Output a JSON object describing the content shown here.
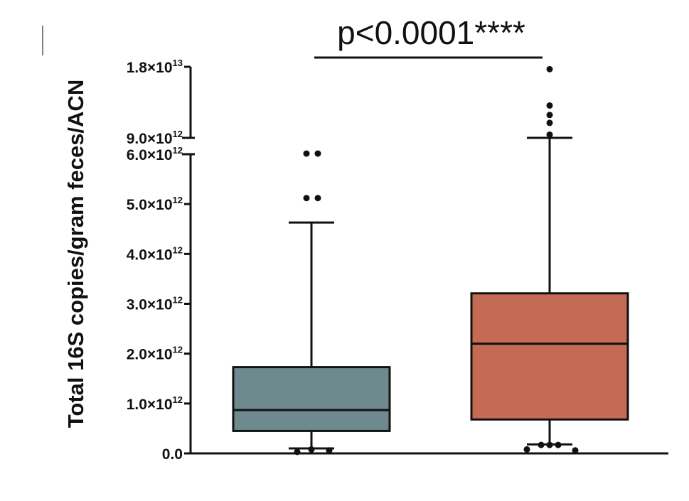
{
  "chart_data": {
    "type": "box",
    "ylabel": "Total 16S copies/gram feces/ACN",
    "y_axis": {
      "broken": true,
      "lower_segment": {
        "range": [
          0,
          6000000000000
        ]
      },
      "upper_segment": {
        "range": [
          9000000000000,
          18000000000000
        ]
      },
      "ticks": [
        {
          "value": 0,
          "label": "0.0"
        },
        {
          "value": 1000000000000,
          "base": "1.0×10",
          "exp": "12"
        },
        {
          "value": 2000000000000,
          "base": "2.0×10",
          "exp": "12"
        },
        {
          "value": 3000000000000,
          "base": "3.0×10",
          "exp": "12"
        },
        {
          "value": 4000000000000,
          "base": "4.0×10",
          "exp": "12"
        },
        {
          "value": 5000000000000,
          "base": "5.0×10",
          "exp": "12"
        },
        {
          "value": 6000000000000,
          "base": "6.0×10",
          "exp": "12"
        },
        {
          "value": 9000000000000,
          "base": "9.0×10",
          "exp": "12"
        },
        {
          "value": 18000000000000,
          "base": "1.8×10",
          "exp": "13"
        }
      ]
    },
    "groups": [
      {
        "color": "#6e8a8e",
        "whisker_low": 100000000000,
        "q1": 450000000000,
        "median": 870000000000,
        "q3": 1730000000000,
        "whisker_high": 4630000000000,
        "outliers": [
          [
            -0.2,
            30000000000
          ],
          [
            0.0,
            80000000000
          ],
          [
            0.25,
            60000000000
          ],
          [
            -0.07,
            5120000000000
          ],
          [
            0.09,
            5120000000000
          ],
          [
            -0.07,
            6120000000000
          ],
          [
            0.09,
            6120000000000
          ]
        ]
      },
      {
        "color": "#c46a55",
        "whisker_low": 180000000000,
        "q1": 680000000000,
        "median": 2200000000000,
        "q3": 3210000000000,
        "whisker_high": 9000000000000,
        "outliers": [
          [
            -0.32,
            80000000000
          ],
          [
            0.36,
            60000000000
          ],
          [
            -0.12,
            170000000000
          ],
          [
            0.0,
            170000000000
          ],
          [
            0.12,
            170000000000
          ],
          [
            0.0,
            9400000000000
          ],
          [
            0.0,
            10900000000000
          ],
          [
            0.0,
            11900000000000
          ],
          [
            0.0,
            13100000000000
          ],
          [
            0.0,
            17700000000000
          ]
        ]
      }
    ],
    "significance": {
      "label": "p<0.0001****",
      "between": [
        0,
        1
      ]
    }
  }
}
